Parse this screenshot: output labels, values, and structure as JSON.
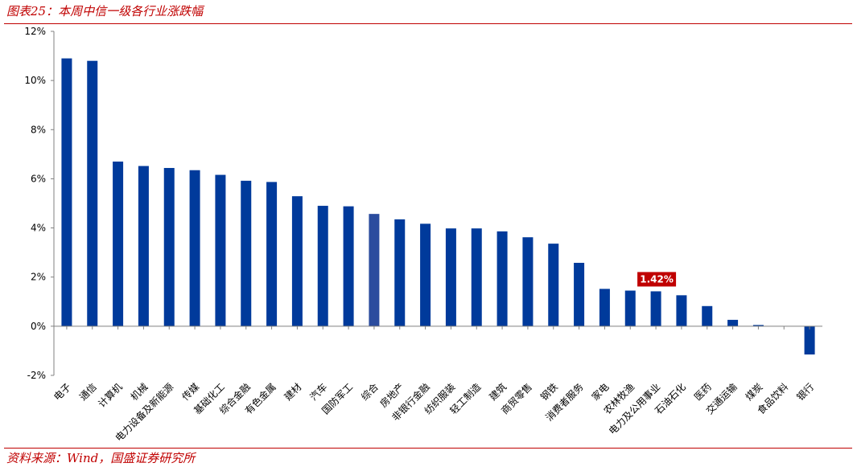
{
  "header": {
    "title": "图表25：本周中信一级各行业涨跌幅"
  },
  "footer": {
    "source": "资料来源：Wind，国盛证券研究所"
  },
  "chart_data": {
    "type": "bar",
    "title": "",
    "xlabel": "",
    "ylabel": "",
    "ylim": [
      -2,
      12
    ],
    "yticks": [
      "12%",
      "10%",
      "8%",
      "6%",
      "4%",
      "2%",
      "0%",
      "-2%"
    ],
    "ytick_values": [
      12,
      10,
      8,
      6,
      4,
      2,
      0,
      -2
    ],
    "grid": false,
    "legend": "none",
    "categories": [
      "电子",
      "通信",
      "计算机",
      "机械",
      "电力设备及新能源",
      "传媒",
      "基础化工",
      "综合金融",
      "有色金属",
      "建材",
      "汽车",
      "国防军工",
      "综合",
      "房地产",
      "非银行金融",
      "纺织服装",
      "轻工制造",
      "建筑",
      "商贸零售",
      "钢铁",
      "消费者服务",
      "家电",
      "农林牧渔",
      "电力及公用事业",
      "石油石化",
      "医药",
      "交通运输",
      "煤炭",
      "食品饮料",
      "银行"
    ],
    "values": [
      10.9,
      10.8,
      6.7,
      6.52,
      6.44,
      6.35,
      6.16,
      5.92,
      5.87,
      5.29,
      4.9,
      4.88,
      4.57,
      4.35,
      4.17,
      3.98,
      3.98,
      3.86,
      3.62,
      3.36,
      2.58,
      1.52,
      1.45,
      1.42,
      1.26,
      0.82,
      0.26,
      0.05,
      0.0,
      -1.15
    ],
    "highlight_index": 12,
    "colors": {
      "bar": "#003a9b",
      "highlight": "#2b4c9e",
      "annotation_bg": "#c00000",
      "axis": "#808080"
    },
    "annotations": [
      {
        "category": "电力及公用事业",
        "text": "1.42%"
      }
    ]
  }
}
